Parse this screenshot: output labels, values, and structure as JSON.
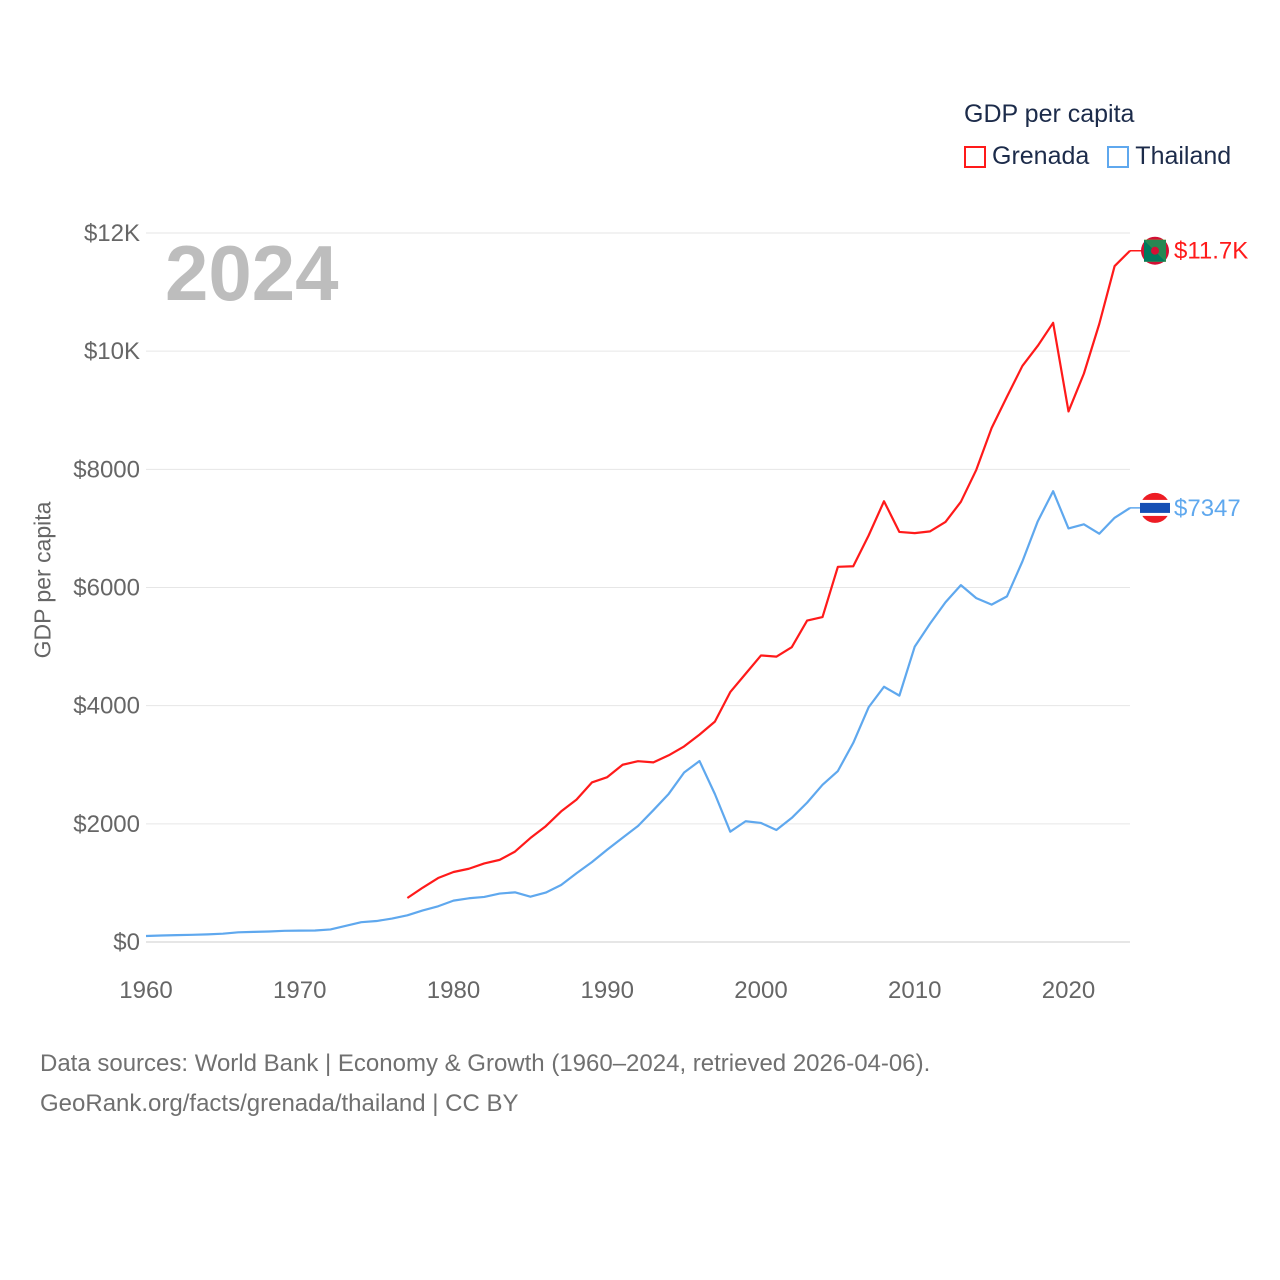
{
  "legend": {
    "title": "GDP per capita",
    "items": [
      {
        "name": "Grenada",
        "color": "#ff1a1a"
      },
      {
        "name": "Thailand",
        "color": "#5fa8ee"
      }
    ]
  },
  "year_label": "2024",
  "footer": {
    "line1": "Data sources: World Bank | Economy & Growth (1960–2024, retrieved 2026-04-06).",
    "line2": "GeoRank.org/facts/grenada/thailand | CC BY"
  },
  "chart_data": {
    "type": "line",
    "title": "GDP per capita",
    "xlabel": "",
    "ylabel": "GDP per capita",
    "xlim": [
      1960,
      2024
    ],
    "ylim": [
      0,
      12000
    ],
    "grid": true,
    "legend_position": "top-right",
    "x_ticks": [
      1960,
      1970,
      1980,
      1990,
      2000,
      2010,
      2020
    ],
    "x_tick_labels": [
      "1960",
      "1970",
      "1980",
      "1990",
      "2000",
      "2010",
      "2020"
    ],
    "y_ticks": [
      0,
      2000,
      4000,
      6000,
      8000,
      10000,
      12000
    ],
    "y_tick_labels": [
      "$0",
      "$2000",
      "$4000",
      "$6000",
      "$8000",
      "$10K",
      "$12K"
    ],
    "series": [
      {
        "name": "Grenada",
        "color": "#ff1a1a",
        "end_label": "$11.7K",
        "start_year": 1977,
        "values": [
          745,
          920,
          1083,
          1185,
          1240,
          1330,
          1390,
          1530,
          1760,
          1960,
          2210,
          2410,
          2700,
          2790,
          3000,
          3060,
          3040,
          3160,
          3310,
          3510,
          3730,
          4230,
          4540,
          4850,
          4830,
          4990,
          5440,
          5500,
          6350,
          6360,
          6880,
          7460,
          6940,
          6920,
          6950,
          7110,
          7450,
          7990,
          8700,
          9230,
          9750,
          10090,
          10480,
          8980,
          9620,
          10460,
          11440,
          11700
        ]
      },
      {
        "name": "Thailand",
        "color": "#5fa8ee",
        "end_label": "$7347",
        "start_year": 1960,
        "values": [
          101,
          110,
          116,
          122,
          129,
          141,
          164,
          171,
          178,
          189,
          192,
          195,
          213,
          274,
          335,
          355,
          397,
          452,
          535,
          605,
          700,
          740,
          763,
          820,
          840,
          766,
          836,
          965,
          1163,
          1352,
          1563,
          1765,
          1963,
          2231,
          2508,
          2869,
          3063,
          2505,
          1867,
          2044,
          2015,
          1895,
          2100,
          2359,
          2660,
          2894,
          3370,
          3973,
          4320,
          4170,
          5000,
          5390,
          5750,
          6040,
          5820,
          5710,
          5850,
          6440,
          7120,
          7630,
          7000,
          7070,
          6910,
          7180,
          7347
        ]
      }
    ]
  }
}
